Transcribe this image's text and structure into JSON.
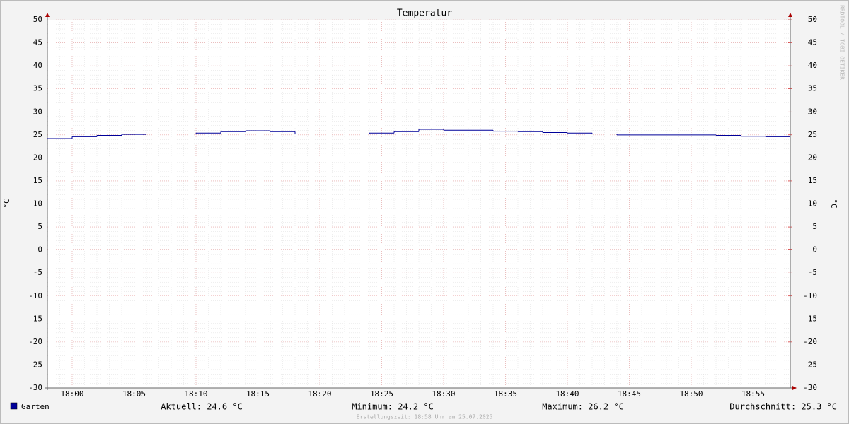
{
  "chart_data": {
    "type": "line",
    "title": "Temperatur",
    "ylabel": "°C",
    "y2label": "°C",
    "x": [
      "17:58",
      "18:00",
      "18:02",
      "18:04",
      "18:06",
      "18:08",
      "18:10",
      "18:12",
      "18:14",
      "18:16",
      "18:18",
      "18:20",
      "18:22",
      "18:24",
      "18:26",
      "18:28",
      "18:30",
      "18:32",
      "18:34",
      "18:36",
      "18:38",
      "18:40",
      "18:42",
      "18:44",
      "18:46",
      "18:48",
      "18:50",
      "18:52",
      "18:54",
      "18:56"
    ],
    "series": [
      {
        "name": "Garten",
        "color": "#000099",
        "values": [
          24.2,
          24.6,
          24.9,
          25.1,
          25.2,
          25.2,
          25.4,
          25.7,
          25.9,
          25.7,
          25.2,
          25.2,
          25.2,
          25.4,
          25.7,
          26.2,
          26.0,
          26.0,
          25.8,
          25.7,
          25.5,
          25.4,
          25.2,
          25.0,
          25.0,
          25.0,
          25.0,
          24.9,
          24.7,
          24.6
        ]
      }
    ],
    "xlim": [
      "17:58",
      "18:58"
    ],
    "xticks": [
      "18:00",
      "18:05",
      "18:10",
      "18:15",
      "18:20",
      "18:25",
      "18:30",
      "18:35",
      "18:40",
      "18:45",
      "18:50",
      "18:55"
    ],
    "ylim": [
      -30,
      50
    ],
    "yticks": [
      -30,
      -25,
      -20,
      -15,
      -10,
      -5,
      0,
      5,
      10,
      15,
      20,
      25,
      30,
      35,
      40,
      45,
      50
    ],
    "y2lim": [
      -30,
      50
    ],
    "y2ticks": [
      -30,
      -25,
      -20,
      -15,
      -10,
      -5,
      0,
      5,
      10,
      15,
      20,
      25,
      30,
      35,
      40,
      45,
      50
    ],
    "grid": true,
    "stats": [
      "Aktuell: 24.6 °C",
      "Minimum: 24.2 °C",
      "Maximum: 26.2 °C",
      "Durchschnitt: 25.3 °C"
    ],
    "footer": "Erstellungszeit: 18:58 Uhr am 25.07.2025",
    "watermark": "RRDTOOL / TOBI OETIKER"
  }
}
